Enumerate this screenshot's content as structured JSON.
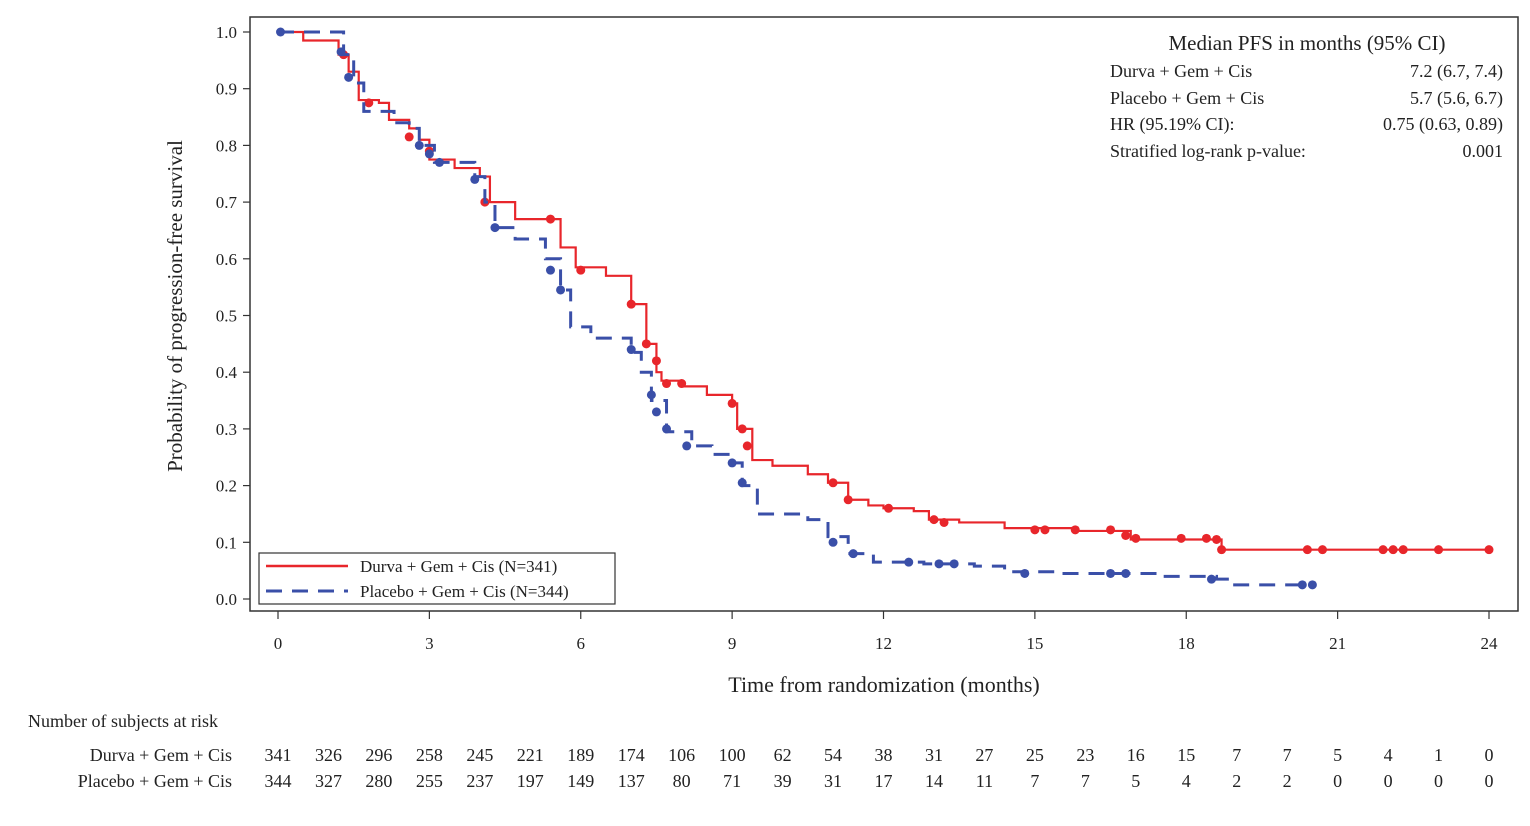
{
  "chart_data": {
    "type": "line",
    "subtype": "kaplan-meier",
    "xlabel": "Time from randomization (months)",
    "ylabel": "Probability of progression-free survival",
    "xlim": [
      0,
      24
    ],
    "ylim": [
      0,
      1.0
    ],
    "xticks": [
      0,
      3,
      6,
      9,
      12,
      15,
      18,
      21,
      24
    ],
    "yticks": [
      "0.0",
      "0.1",
      "0.2",
      "0.3",
      "0.4",
      "0.5",
      "0.6",
      "0.7",
      "0.8",
      "0.9",
      "1.0"
    ],
    "grid": false,
    "legend_position": "bottom-left",
    "series": [
      {
        "name": "Durva + Gem + Cis (N=341)",
        "color": "#e8262b",
        "dash": "solid",
        "points": [
          [
            0,
            1.0
          ],
          [
            0.5,
            0.985
          ],
          [
            1.2,
            0.96
          ],
          [
            1.4,
            0.93
          ],
          [
            1.6,
            0.88
          ],
          [
            2.0,
            0.875
          ],
          [
            2.2,
            0.845
          ],
          [
            2.6,
            0.83
          ],
          [
            2.8,
            0.81
          ],
          [
            3.0,
            0.775
          ],
          [
            3.5,
            0.76
          ],
          [
            4.0,
            0.745
          ],
          [
            4.2,
            0.7
          ],
          [
            4.7,
            0.67
          ],
          [
            5.4,
            0.67
          ],
          [
            5.6,
            0.62
          ],
          [
            5.9,
            0.585
          ],
          [
            6.5,
            0.57
          ],
          [
            7.0,
            0.52
          ],
          [
            7.3,
            0.45
          ],
          [
            7.5,
            0.4
          ],
          [
            7.6,
            0.385
          ],
          [
            8.0,
            0.375
          ],
          [
            8.5,
            0.36
          ],
          [
            9.0,
            0.345
          ],
          [
            9.1,
            0.3
          ],
          [
            9.4,
            0.245
          ],
          [
            9.8,
            0.235
          ],
          [
            10.5,
            0.22
          ],
          [
            10.9,
            0.205
          ],
          [
            11.3,
            0.175
          ],
          [
            11.7,
            0.165
          ],
          [
            12.0,
            0.16
          ],
          [
            12.6,
            0.155
          ],
          [
            12.9,
            0.14
          ],
          [
            13.5,
            0.135
          ],
          [
            14.4,
            0.125
          ],
          [
            15.8,
            0.12
          ],
          [
            16.5,
            0.12
          ],
          [
            16.9,
            0.105
          ],
          [
            18.6,
            0.105
          ],
          [
            18.7,
            0.087
          ],
          [
            24,
            0.087
          ]
        ],
        "censored": [
          [
            1.3,
            0.96
          ],
          [
            1.8,
            0.875
          ],
          [
            2.6,
            0.815
          ],
          [
            3.0,
            0.79
          ],
          [
            4.1,
            0.7
          ],
          [
            5.4,
            0.67
          ],
          [
            6.0,
            0.58
          ],
          [
            7.0,
            0.52
          ],
          [
            7.3,
            0.45
          ],
          [
            7.5,
            0.42
          ],
          [
            7.7,
            0.38
          ],
          [
            8.0,
            0.38
          ],
          [
            9.0,
            0.345
          ],
          [
            9.2,
            0.3
          ],
          [
            9.3,
            0.27
          ],
          [
            11.0,
            0.205
          ],
          [
            11.3,
            0.175
          ],
          [
            12.1,
            0.16
          ],
          [
            13.0,
            0.14
          ],
          [
            13.2,
            0.135
          ],
          [
            15.0,
            0.122
          ],
          [
            15.2,
            0.122
          ],
          [
            15.8,
            0.122
          ],
          [
            16.5,
            0.122
          ],
          [
            16.8,
            0.112
          ],
          [
            17.0,
            0.107
          ],
          [
            17.9,
            0.107
          ],
          [
            18.4,
            0.107
          ],
          [
            18.6,
            0.105
          ],
          [
            18.7,
            0.087
          ],
          [
            20.4,
            0.087
          ],
          [
            20.7,
            0.087
          ],
          [
            21.9,
            0.087
          ],
          [
            22.1,
            0.087
          ],
          [
            22.3,
            0.087
          ],
          [
            23.0,
            0.087
          ],
          [
            24.0,
            0.087
          ]
        ]
      },
      {
        "name": "Placebo + Gem + Cis (N=344)",
        "color": "#3a4fa8",
        "dash": "dashed",
        "points": [
          [
            0,
            1.0
          ],
          [
            1.3,
            0.96
          ],
          [
            1.5,
            0.91
          ],
          [
            1.7,
            0.86
          ],
          [
            2.3,
            0.84
          ],
          [
            2.6,
            0.83
          ],
          [
            2.8,
            0.8
          ],
          [
            3.1,
            0.77
          ],
          [
            3.9,
            0.745
          ],
          [
            4.1,
            0.7
          ],
          [
            4.3,
            0.655
          ],
          [
            4.7,
            0.635
          ],
          [
            5.3,
            0.6
          ],
          [
            5.6,
            0.545
          ],
          [
            5.8,
            0.48
          ],
          [
            6.2,
            0.46
          ],
          [
            7.0,
            0.435
          ],
          [
            7.2,
            0.4
          ],
          [
            7.4,
            0.35
          ],
          [
            7.7,
            0.295
          ],
          [
            8.2,
            0.27
          ],
          [
            8.6,
            0.255
          ],
          [
            9.0,
            0.24
          ],
          [
            9.2,
            0.2
          ],
          [
            9.5,
            0.15
          ],
          [
            10.5,
            0.14
          ],
          [
            10.9,
            0.11
          ],
          [
            11.3,
            0.08
          ],
          [
            11.8,
            0.065
          ],
          [
            12.8,
            0.062
          ],
          [
            13.8,
            0.058
          ],
          [
            14.4,
            0.048
          ],
          [
            15.5,
            0.045
          ],
          [
            16.8,
            0.045
          ],
          [
            17.5,
            0.04
          ],
          [
            18.6,
            0.035
          ],
          [
            18.9,
            0.025
          ],
          [
            20.5,
            0.025
          ]
        ],
        "censored": [
          [
            0.05,
            1.0
          ],
          [
            1.25,
            0.965
          ],
          [
            1.4,
            0.92
          ],
          [
            2.8,
            0.8
          ],
          [
            3.0,
            0.785
          ],
          [
            3.2,
            0.77
          ],
          [
            3.9,
            0.74
          ],
          [
            4.3,
            0.655
          ],
          [
            5.4,
            0.58
          ],
          [
            5.6,
            0.545
          ],
          [
            7.0,
            0.44
          ],
          [
            7.4,
            0.36
          ],
          [
            7.5,
            0.33
          ],
          [
            7.7,
            0.3
          ],
          [
            8.1,
            0.27
          ],
          [
            9.0,
            0.24
          ],
          [
            9.2,
            0.205
          ],
          [
            11.0,
            0.1
          ],
          [
            11.4,
            0.08
          ],
          [
            12.5,
            0.065
          ],
          [
            13.1,
            0.062
          ],
          [
            13.4,
            0.062
          ],
          [
            14.8,
            0.045
          ],
          [
            16.5,
            0.045
          ],
          [
            16.8,
            0.045
          ],
          [
            18.5,
            0.035
          ],
          [
            20.3,
            0.025
          ],
          [
            20.5,
            0.025
          ]
        ]
      }
    ],
    "stats_box": {
      "title": "Median PFS in months (95% CI)",
      "rows": [
        {
          "label": "Durva + Gem + Cis",
          "value": "7.2 (6.7, 7.4)"
        },
        {
          "label": "Placebo + Gem + Cis",
          "value": "5.7 (5.6, 6.7)"
        },
        {
          "label": "HR (95.19% CI):",
          "value": "0.75 (0.63, 0.89)"
        },
        {
          "label": "Stratified log-rank p-value:",
          "value": "0.001"
        }
      ]
    },
    "risk_table": {
      "title": "Number of subjects at risk",
      "times": [
        0,
        1,
        2,
        3,
        4,
        5,
        6,
        7,
        8,
        9,
        10,
        11,
        12,
        13,
        14,
        15,
        16,
        17,
        18,
        19,
        20,
        21,
        22,
        23,
        24
      ],
      "rows": [
        {
          "label": "Durva + Gem + Cis",
          "values": [
            341,
            326,
            296,
            258,
            245,
            221,
            189,
            174,
            106,
            100,
            62,
            54,
            38,
            31,
            27,
            25,
            23,
            16,
            15,
            7,
            7,
            5,
            4,
            1,
            0
          ]
        },
        {
          "label": "Placebo + Gem + Cis",
          "values": [
            344,
            327,
            280,
            255,
            237,
            197,
            149,
            137,
            80,
            71,
            39,
            31,
            17,
            14,
            11,
            7,
            7,
            5,
            4,
            2,
            2,
            0,
            0,
            0,
            0
          ]
        }
      ]
    }
  }
}
